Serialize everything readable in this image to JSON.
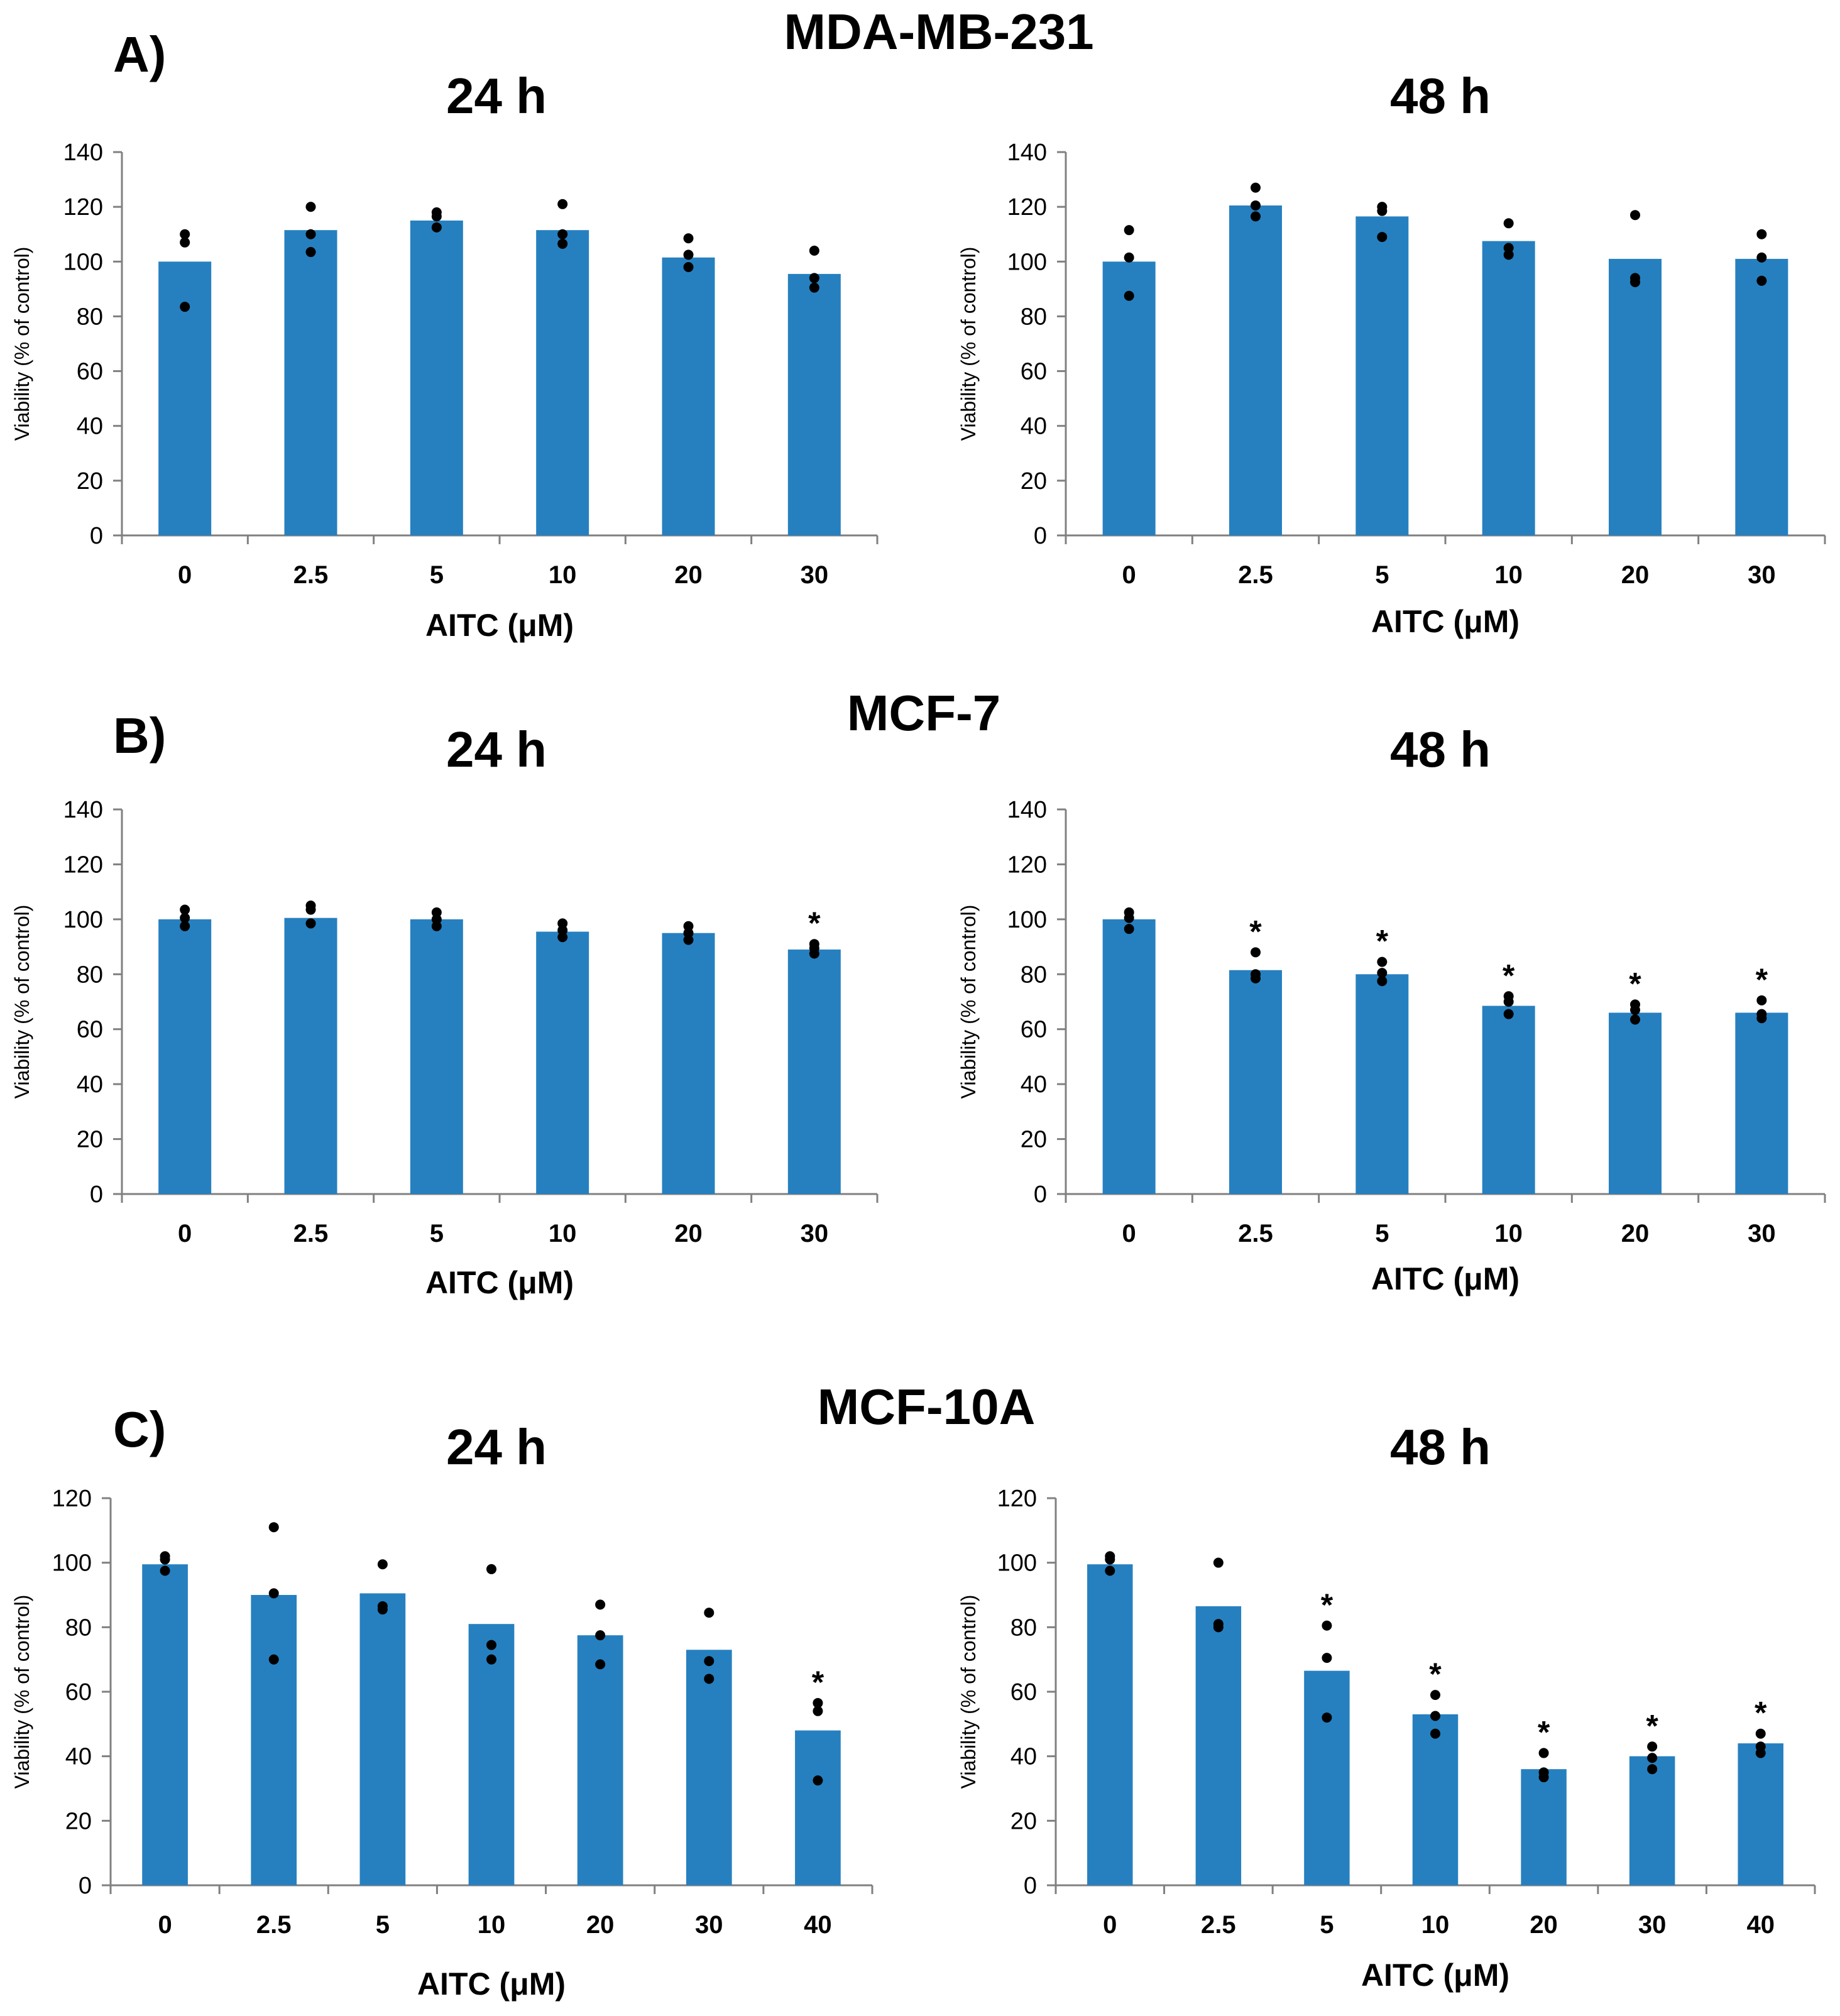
{
  "colors": {
    "bar": "#2680C0",
    "point": "#000000",
    "axis": "#808080"
  },
  "figure_panels": [
    {
      "letter": "A)",
      "cell_line": "MDA-MB-231"
    },
    {
      "letter": "B)",
      "cell_line": "MCF-7"
    },
    {
      "letter": "C)",
      "cell_line": "MCF-10A"
    }
  ],
  "chart_data": [
    {
      "type": "bar",
      "panel": 0,
      "title": "24 h",
      "xlabel": "AITC (μM)",
      "ylabel": "Viability (% of control)",
      "ylim": [
        0,
        140
      ],
      "yticks": [
        0,
        20,
        40,
        60,
        80,
        100,
        120,
        140
      ],
      "categories": [
        "0",
        "2.5",
        "5",
        "10",
        "20",
        "30"
      ],
      "values": [
        100,
        111.5,
        115,
        111.5,
        101.5,
        95.5
      ],
      "replicates": [
        [
          110,
          107,
          83.5
        ],
        [
          120,
          110,
          103.5
        ],
        [
          118,
          116.5,
          112.5
        ],
        [
          121,
          110,
          106.5
        ],
        [
          108.5,
          102.5,
          98
        ],
        [
          104,
          94,
          90.5
        ]
      ],
      "significant": [
        false,
        false,
        false,
        false,
        false,
        false
      ]
    },
    {
      "type": "bar",
      "panel": 0,
      "title": "48 h",
      "xlabel": "AITC (μM)",
      "ylabel": "Viability (% of control)",
      "ylim": [
        0,
        140
      ],
      "yticks": [
        0,
        20,
        40,
        60,
        80,
        100,
        120,
        140
      ],
      "categories": [
        "0",
        "2.5",
        "5",
        "10",
        "20",
        "30"
      ],
      "values": [
        100,
        120.5,
        116.5,
        107.5,
        101,
        101
      ],
      "replicates": [
        [
          111.5,
          101.5,
          87.5
        ],
        [
          127,
          120.5,
          116.5
        ],
        [
          120,
          118.5,
          109
        ],
        [
          114,
          105,
          102.5
        ],
        [
          117,
          94,
          92.5
        ],
        [
          110,
          101.5,
          93
        ]
      ],
      "significant": [
        false,
        false,
        false,
        false,
        false,
        false
      ]
    },
    {
      "type": "bar",
      "panel": 1,
      "title": "24 h",
      "xlabel": "AITC (μM)",
      "ylabel": "Viability (% of control)",
      "ylim": [
        0,
        140
      ],
      "yticks": [
        0,
        20,
        40,
        60,
        80,
        100,
        120,
        140
      ],
      "categories": [
        "0",
        "2.5",
        "5",
        "10",
        "20",
        "30"
      ],
      "values": [
        100,
        100.5,
        100,
        95.5,
        95,
        89
      ],
      "replicates": [
        [
          103.5,
          100.5,
          97.5
        ],
        [
          105,
          103.5,
          98.5
        ],
        [
          102.5,
          100,
          97.5
        ],
        [
          98.5,
          96,
          93.5
        ],
        [
          97.5,
          95,
          92.5
        ],
        [
          91,
          89.5,
          87.5
        ]
      ],
      "significant": [
        false,
        false,
        false,
        false,
        false,
        true
      ]
    },
    {
      "type": "bar",
      "panel": 1,
      "title": "48 h",
      "xlabel": "AITC (μM)",
      "ylabel": "Viability (% of control)",
      "ylim": [
        0,
        140
      ],
      "yticks": [
        0,
        20,
        40,
        60,
        80,
        100,
        120,
        140
      ],
      "categories": [
        "0",
        "2.5",
        "5",
        "10",
        "20",
        "30"
      ],
      "values": [
        100,
        81.5,
        80,
        68.5,
        66,
        66
      ],
      "replicates": [
        [
          102.5,
          100.5,
          96.5
        ],
        [
          88,
          80,
          78.5
        ],
        [
          84.5,
          80.5,
          77.5
        ],
        [
          72,
          70,
          65.5
        ],
        [
          69,
          67,
          63.5
        ],
        [
          70.5,
          65.5,
          64
        ]
      ],
      "significant": [
        false,
        true,
        true,
        true,
        true,
        true
      ]
    },
    {
      "type": "bar",
      "panel": 2,
      "title": "24 h",
      "xlabel": "AITC (μM)",
      "ylabel": "Viability (% of control)",
      "ylim": [
        0,
        120
      ],
      "yticks": [
        0,
        20,
        40,
        60,
        80,
        100,
        120
      ],
      "categories": [
        "0",
        "2.5",
        "5",
        "10",
        "20",
        "30",
        "40"
      ],
      "values": [
        99.5,
        90,
        90.5,
        81,
        77.5,
        73,
        48
      ],
      "replicates": [
        [
          102,
          101,
          97.5
        ],
        [
          111,
          90.5,
          70
        ],
        [
          99.5,
          86.5,
          85.5
        ],
        [
          98,
          74.5,
          70
        ],
        [
          87,
          77.5,
          68.5
        ],
        [
          84.5,
          69.5,
          64
        ],
        [
          56.5,
          54,
          32.5
        ]
      ],
      "significant": [
        false,
        false,
        false,
        false,
        false,
        false,
        true
      ]
    },
    {
      "type": "bar",
      "panel": 2,
      "title": "48 h",
      "xlabel": "AITC (μM)",
      "ylabel": "Viability (% of control)",
      "ylim": [
        0,
        120
      ],
      "yticks": [
        0,
        20,
        40,
        60,
        80,
        100,
        120
      ],
      "categories": [
        "0",
        "2.5",
        "5",
        "10",
        "20",
        "30",
        "40"
      ],
      "values": [
        99.5,
        86.5,
        66.5,
        53,
        36,
        40,
        44
      ],
      "replicates": [
        [
          102,
          101,
          97.5
        ],
        [
          100,
          81,
          80
        ],
        [
          80.5,
          70.5,
          52
        ],
        [
          59,
          52.5,
          47
        ],
        [
          41,
          35,
          33.5
        ],
        [
          43,
          39.5,
          36
        ],
        [
          47,
          43,
          41
        ]
      ],
      "significant": [
        false,
        false,
        true,
        true,
        true,
        true,
        true
      ]
    }
  ]
}
